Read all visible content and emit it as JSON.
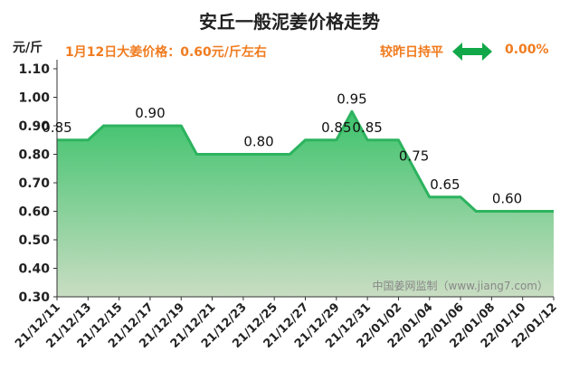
{
  "header": {
    "title": "安丘一般泥姜价格走势",
    "unit": "元/斤",
    "price_info": "1月12日大姜价格：0.60元/斤左右",
    "compare_label": "较昨日持平",
    "compare_icon": "double-arrow-icon",
    "compare_value": "0.00%"
  },
  "colors": {
    "accent_orange": "#f07c20",
    "line_green": "#2db35f",
    "arrow_green": "#12a84a"
  },
  "chart_data": {
    "type": "area",
    "title": "安丘一般泥姜价格走势",
    "ylabel": "元/斤",
    "ylim": [
      0.3,
      1.1
    ],
    "yticks": [
      "0.30",
      "0.40",
      "0.50",
      "0.60",
      "0.70",
      "0.80",
      "0.90",
      "1.00",
      "1.10"
    ],
    "xticks": [
      "21/12/11",
      "21/12/13",
      "21/12/15",
      "21/12/17",
      "21/12/19",
      "21/12/21",
      "21/12/23",
      "21/12/25",
      "21/12/27",
      "21/12/29",
      "21/12/31",
      "22/01/02",
      "22/01/04",
      "22/01/06",
      "22/01/08",
      "22/01/10",
      "22/01/12"
    ],
    "x": [
      "2021-12-11",
      "2021-12-13",
      "2021-12-14",
      "2021-12-19",
      "2021-12-20",
      "2021-12-26",
      "2021-12-27",
      "2021-12-29",
      "2021-12-30",
      "2021-12-31",
      "2022-01-02",
      "2022-01-04",
      "2022-01-06",
      "2022-01-07",
      "2022-01-12"
    ],
    "values": [
      0.85,
      0.85,
      0.9,
      0.9,
      0.8,
      0.8,
      0.85,
      0.85,
      0.95,
      0.85,
      0.85,
      0.65,
      0.65,
      0.6,
      0.6
    ],
    "data_labels": [
      {
        "x": "2021-12-11",
        "text": "0.85"
      },
      {
        "x": "2021-12-17",
        "text": "0.90"
      },
      {
        "x": "2021-12-24",
        "text": "0.80"
      },
      {
        "x": "2021-12-29",
        "text": "0.85"
      },
      {
        "x": "2021-12-30",
        "text": "0.95"
      },
      {
        "x": "2021-12-31",
        "text": "0.85"
      },
      {
        "x": "2022-01-03",
        "text": "0.75"
      },
      {
        "x": "2022-01-05",
        "text": "0.65"
      },
      {
        "x": "2022-01-09",
        "text": "0.60"
      }
    ],
    "watermark": "中国姜网监制（www.jiang7.com）",
    "grid": false
  }
}
